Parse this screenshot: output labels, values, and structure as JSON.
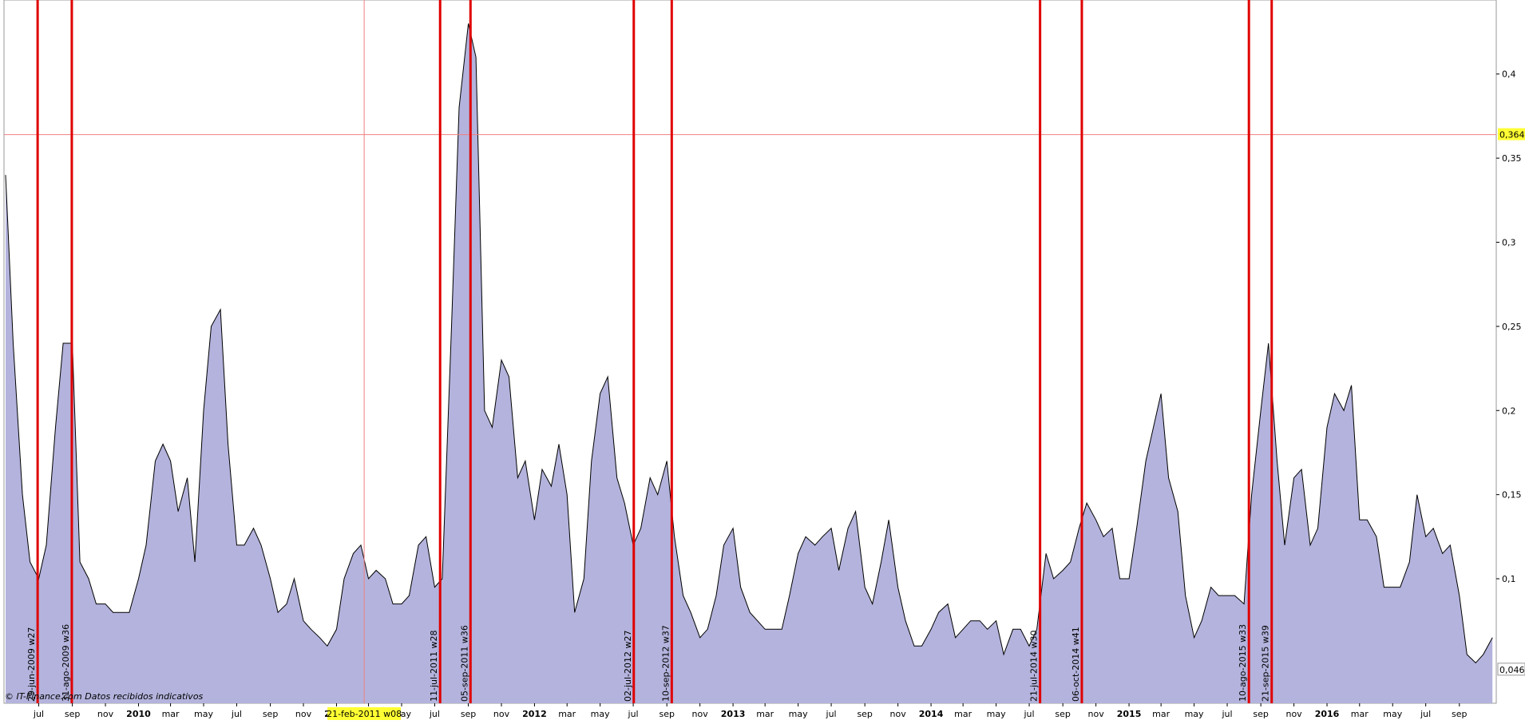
{
  "chart_data": {
    "type": "area",
    "x": [
      "2009-05-01",
      "2009-05-15",
      "2009-06-01",
      "2009-06-15",
      "2009-07-01",
      "2009-07-15",
      "2009-08-01",
      "2009-08-15",
      "2009-09-01",
      "2009-09-15",
      "2009-10-01",
      "2009-10-15",
      "2009-11-01",
      "2009-11-15",
      "2009-12-01",
      "2009-12-15",
      "2010-01-01",
      "2010-01-15",
      "2010-02-01",
      "2010-02-15",
      "2010-03-01",
      "2010-03-15",
      "2010-04-01",
      "2010-04-15",
      "2010-05-01",
      "2010-05-15",
      "2010-06-01",
      "2010-06-15",
      "2010-07-01",
      "2010-07-15",
      "2010-08-01",
      "2010-08-15",
      "2010-09-01",
      "2010-09-15",
      "2010-10-01",
      "2010-10-15",
      "2010-11-01",
      "2010-11-15",
      "2010-12-01",
      "2010-12-15",
      "2011-01-01",
      "2011-01-15",
      "2011-02-01",
      "2011-02-15",
      "2011-03-01",
      "2011-03-15",
      "2011-04-01",
      "2011-04-15",
      "2011-05-01",
      "2011-05-15",
      "2011-06-01",
      "2011-06-15",
      "2011-07-01",
      "2011-07-15",
      "2011-08-01",
      "2011-08-15",
      "2011-09-01",
      "2011-09-15",
      "2011-10-01",
      "2011-10-15",
      "2011-11-01",
      "2011-11-15",
      "2011-12-01",
      "2011-12-15",
      "2012-01-01",
      "2012-01-15",
      "2012-02-01",
      "2012-02-15",
      "2012-03-01",
      "2012-03-15",
      "2012-04-01",
      "2012-04-15",
      "2012-05-01",
      "2012-05-15",
      "2012-06-01",
      "2012-06-15",
      "2012-07-01",
      "2012-07-15",
      "2012-08-01",
      "2012-08-15",
      "2012-09-01",
      "2012-09-15",
      "2012-10-01",
      "2012-10-15",
      "2012-11-01",
      "2012-11-15",
      "2012-12-01",
      "2012-12-15",
      "2013-01-01",
      "2013-01-15",
      "2013-02-01",
      "2013-02-15",
      "2013-03-01",
      "2013-03-15",
      "2013-04-01",
      "2013-04-15",
      "2013-05-01",
      "2013-05-15",
      "2013-06-01",
      "2013-06-15",
      "2013-07-01",
      "2013-07-15",
      "2013-08-01",
      "2013-08-15",
      "2013-09-01",
      "2013-09-15",
      "2013-10-01",
      "2013-10-15",
      "2013-11-01",
      "2013-11-15",
      "2013-12-01",
      "2013-12-15",
      "2014-01-01",
      "2014-01-15",
      "2014-02-01",
      "2014-02-15",
      "2014-03-01",
      "2014-03-15",
      "2014-04-01",
      "2014-04-15",
      "2014-05-01",
      "2014-05-15",
      "2014-06-01",
      "2014-06-15",
      "2014-07-01",
      "2014-07-15",
      "2014-08-01",
      "2014-08-15",
      "2014-09-01",
      "2014-09-15",
      "2014-10-01",
      "2014-10-15",
      "2014-11-01",
      "2014-11-15",
      "2014-12-01",
      "2014-12-15",
      "2015-01-01",
      "2015-01-15",
      "2015-02-01",
      "2015-02-15",
      "2015-03-01",
      "2015-03-15",
      "2015-04-01",
      "2015-04-15",
      "2015-05-01",
      "2015-05-15",
      "2015-06-01",
      "2015-06-15",
      "2015-07-01",
      "2015-07-15",
      "2015-08-01",
      "2015-08-15",
      "2015-09-01",
      "2015-09-15",
      "2015-10-01",
      "2015-10-15",
      "2015-11-01",
      "2015-11-15",
      "2015-12-01",
      "2015-12-15",
      "2016-01-01",
      "2016-01-15",
      "2016-02-01",
      "2016-02-15",
      "2016-03-01",
      "2016-03-15",
      "2016-04-01",
      "2016-04-15",
      "2016-05-01",
      "2016-05-15",
      "2016-06-01",
      "2016-06-15",
      "2016-07-01",
      "2016-07-15",
      "2016-08-01",
      "2016-08-15",
      "2016-09-01",
      "2016-09-15",
      "2016-10-01",
      "2016-10-15",
      "2016-11-01"
    ],
    "values": [
      0.34,
      0.24,
      0.15,
      0.11,
      0.1,
      0.12,
      0.19,
      0.24,
      0.24,
      0.11,
      0.1,
      0.085,
      0.085,
      0.08,
      0.08,
      0.08,
      0.1,
      0.12,
      0.17,
      0.18,
      0.17,
      0.14,
      0.16,
      0.11,
      0.2,
      0.25,
      0.26,
      0.18,
      0.12,
      0.12,
      0.13,
      0.12,
      0.1,
      0.08,
      0.085,
      0.1,
      0.075,
      0.07,
      0.065,
      0.06,
      0.07,
      0.1,
      0.115,
      0.12,
      0.1,
      0.105,
      0.1,
      0.085,
      0.085,
      0.09,
      0.12,
      0.125,
      0.095,
      0.1,
      0.25,
      0.38,
      0.43,
      0.41,
      0.2,
      0.19,
      0.23,
      0.22,
      0.16,
      0.17,
      0.135,
      0.165,
      0.155,
      0.18,
      0.15,
      0.08,
      0.1,
      0.17,
      0.21,
      0.22,
      0.16,
      0.145,
      0.12,
      0.13,
      0.16,
      0.15,
      0.17,
      0.125,
      0.09,
      0.08,
      0.065,
      0.07,
      0.09,
      0.12,
      0.13,
      0.095,
      0.08,
      0.075,
      0.07,
      0.07,
      0.07,
      0.09,
      0.115,
      0.125,
      0.12,
      0.125,
      0.13,
      0.105,
      0.13,
      0.14,
      0.095,
      0.085,
      0.11,
      0.135,
      0.095,
      0.075,
      0.06,
      0.06,
      0.07,
      0.08,
      0.085,
      0.065,
      0.07,
      0.075,
      0.075,
      0.07,
      0.075,
      0.055,
      0.07,
      0.07,
      0.06,
      0.07,
      0.115,
      0.1,
      0.105,
      0.11,
      0.13,
      0.145,
      0.135,
      0.125,
      0.13,
      0.1,
      0.1,
      0.13,
      0.17,
      0.19,
      0.21,
      0.16,
      0.14,
      0.09,
      0.065,
      0.075,
      0.095,
      0.09,
      0.09,
      0.09,
      0.085,
      0.15,
      0.2,
      0.24,
      0.17,
      0.12,
      0.16,
      0.165,
      0.12,
      0.13,
      0.19,
      0.21,
      0.2,
      0.215,
      0.135,
      0.135,
      0.125,
      0.095,
      0.095,
      0.095,
      0.11,
      0.15,
      0.125,
      0.13,
      0.115,
      0.12,
      0.09,
      0.055,
      0.05,
      0.055,
      0.065
    ],
    "color": "#b3b3dd",
    "line_color": "#000000",
    "xlim": [
      "2009-04-28",
      "2016-11-08"
    ],
    "ylim": [
      0.026,
      0.444
    ],
    "yticks": [
      {
        "value": 0.1,
        "label": "0,1"
      },
      {
        "value": 0.15,
        "label": "0,15"
      },
      {
        "value": 0.2,
        "label": "0,2"
      },
      {
        "value": 0.25,
        "label": "0,25"
      },
      {
        "value": 0.3,
        "label": "0,3"
      },
      {
        "value": 0.35,
        "label": "0,35"
      },
      {
        "value": 0.4,
        "label": "0,4"
      }
    ],
    "xticks": [
      {
        "value": "2009-07",
        "label": "jul"
      },
      {
        "value": "2009-09",
        "label": "sep"
      },
      {
        "value": "2009-11",
        "label": "nov"
      },
      {
        "value": "2010-01",
        "label": "2010"
      },
      {
        "value": "2010-03",
        "label": "mar"
      },
      {
        "value": "2010-05",
        "label": "may"
      },
      {
        "value": "2010-07",
        "label": "jul"
      },
      {
        "value": "2010-09",
        "label": "sep"
      },
      {
        "value": "2010-11",
        "label": "nov"
      },
      {
        "value": "2011-01",
        "label": "2011"
      },
      {
        "value": "2011-03",
        "label": "mar"
      },
      {
        "value": "2011-05",
        "label": "may"
      },
      {
        "value": "2011-07",
        "label": "jul"
      },
      {
        "value": "2011-09",
        "label": "sep"
      },
      {
        "value": "2011-11",
        "label": "nov"
      },
      {
        "value": "2012-01",
        "label": "2012"
      },
      {
        "value": "2012-03",
        "label": "mar"
      },
      {
        "value": "2012-05",
        "label": "may"
      },
      {
        "value": "2012-07",
        "label": "jul"
      },
      {
        "value": "2012-09",
        "label": "sep"
      },
      {
        "value": "2012-11",
        "label": "nov"
      },
      {
        "value": "2013-01",
        "label": "2013"
      },
      {
        "value": "2013-03",
        "label": "mar"
      },
      {
        "value": "2013-05",
        "label": "may"
      },
      {
        "value": "2013-07",
        "label": "jul"
      },
      {
        "value": "2013-09",
        "label": "sep"
      },
      {
        "value": "2013-11",
        "label": "nov"
      },
      {
        "value": "2014-01",
        "label": "2014"
      },
      {
        "value": "2014-03",
        "label": "mar"
      },
      {
        "value": "2014-05",
        "label": "may"
      },
      {
        "value": "2014-07",
        "label": "jul"
      },
      {
        "value": "2014-09",
        "label": "sep"
      },
      {
        "value": "2014-11",
        "label": "nov"
      },
      {
        "value": "2015-01",
        "label": "2015"
      },
      {
        "value": "2015-03",
        "label": "mar"
      },
      {
        "value": "2015-05",
        "label": "may"
      },
      {
        "value": "2015-07",
        "label": "jul"
      },
      {
        "value": "2015-09",
        "label": "sep"
      },
      {
        "value": "2015-11",
        "label": "nov"
      },
      {
        "value": "2016-01",
        "label": "2016"
      },
      {
        "value": "2016-03",
        "label": "mar"
      },
      {
        "value": "2016-05",
        "label": "may"
      },
      {
        "value": "2016-07",
        "label": "jul"
      },
      {
        "value": "2016-09",
        "label": "sep"
      }
    ],
    "events": [
      {
        "x": "2009-06-29",
        "label": "29-jun-2009 w27"
      },
      {
        "x": "2009-08-31",
        "label": "31-ago-2009 w36"
      },
      {
        "x": "2011-07-11",
        "label": "11-jul-2011 w28"
      },
      {
        "x": "2011-09-05",
        "label": "05-sep-2011 w36"
      },
      {
        "x": "2012-07-02",
        "label": "02-jul-2012 w27"
      },
      {
        "x": "2012-09-10",
        "label": "10-sep-2012 w37"
      },
      {
        "x": "2014-07-21",
        "label": "21-jul-2014 w30"
      },
      {
        "x": "2014-10-06",
        "label": "06-oct-2014 w41"
      },
      {
        "x": "2015-08-10",
        "label": "10-ago-2015 w33"
      },
      {
        "x": "2015-09-21",
        "label": "21-sep-2015 w39"
      }
    ],
    "event_color": "#e00000",
    "crosshair": {
      "x": "2011-02-21",
      "x_label": "21-feb-2011 w08",
      "y": 0.364,
      "y_label": "0,364"
    },
    "last_value": {
      "value": 0.046,
      "label": "0,046"
    },
    "footer": "© IT-Finance.com  Datos recibidos indicativos"
  }
}
